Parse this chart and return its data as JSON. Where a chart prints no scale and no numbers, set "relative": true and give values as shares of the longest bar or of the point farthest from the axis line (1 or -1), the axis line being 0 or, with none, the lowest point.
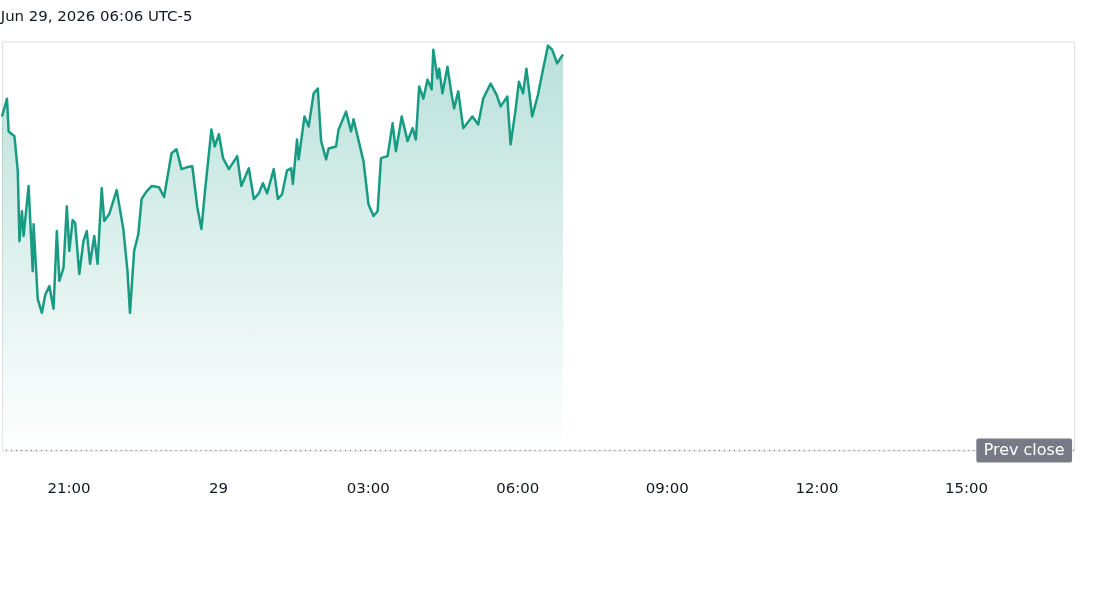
{
  "chart_data": {
    "type": "area",
    "title": "Jun 29, 2026 06:06 UTC-5",
    "relative": true,
    "marker": "none",
    "line_style": "solid",
    "grid": false,
    "xlim": [
      "2026-06-28T19:40",
      "2026-06-29T17:10"
    ],
    "xticks": [
      {
        "value": "2026-06-28T21:00",
        "label": "21:00"
      },
      {
        "value": "2026-06-29T00:00",
        "label": "29"
      },
      {
        "value": "2026-06-29T03:00",
        "label": "03:00"
      },
      {
        "value": "2026-06-29T06:00",
        "label": "06:00"
      },
      {
        "value": "2026-06-29T09:00",
        "label": "09:00"
      },
      {
        "value": "2026-06-29T12:00",
        "label": "12:00"
      },
      {
        "value": "2026-06-29T15:00",
        "label": "15:00"
      }
    ],
    "ref_lines": [
      {
        "axis": "y",
        "value": 0,
        "label": "Prev close",
        "color": "#787b86",
        "line_style": "dotted"
      }
    ],
    "series": [
      {
        "color": "#179b83",
        "x": [
          "2026-06-28T19:40",
          "2026-06-28T19:46",
          "2026-06-28T19:48",
          "2026-06-28T19:55",
          "2026-06-28T19:59",
          "2026-06-28T20:01",
          "2026-06-28T20:04",
          "2026-06-28T20:06",
          "2026-06-28T20:12",
          "2026-06-28T20:17",
          "2026-06-28T20:18",
          "2026-06-28T20:23",
          "2026-06-28T20:28",
          "2026-06-28T20:32",
          "2026-06-28T20:37",
          "2026-06-28T20:42",
          "2026-06-28T20:46",
          "2026-06-28T20:49",
          "2026-06-28T20:54",
          "2026-06-28T20:58",
          "2026-06-28T21:01",
          "2026-06-28T21:05",
          "2026-06-28T21:08",
          "2026-06-28T21:13",
          "2026-06-28T21:18",
          "2026-06-28T21:22",
          "2026-06-28T21:26",
          "2026-06-28T21:31",
          "2026-06-28T21:35",
          "2026-06-28T21:40",
          "2026-06-28T21:43",
          "2026-06-28T21:49",
          "2026-06-28T21:58",
          "2026-06-28T22:06",
          "2026-06-28T22:11",
          "2026-06-28T22:14",
          "2026-06-28T22:19",
          "2026-06-28T22:24",
          "2026-06-28T22:28",
          "2026-06-28T22:34",
          "2026-06-28T22:40",
          "2026-06-28T22:49",
          "2026-06-28T22:55",
          "2026-06-28T23:04",
          "2026-06-28T23:10",
          "2026-06-28T23:16",
          "2026-06-28T23:23",
          "2026-06-28T23:29",
          "2026-06-28T23:35",
          "2026-06-28T23:40",
          "2026-06-28T23:44",
          "2026-06-28T23:52",
          "2026-06-28T23:56",
          "2026-06-29T00:01",
          "2026-06-29T00:06",
          "2026-06-29T00:13",
          "2026-06-29T00:23",
          "2026-06-29T00:28",
          "2026-06-29T00:37",
          "2026-06-29T00:43",
          "2026-06-29T00:49",
          "2026-06-29T00:54",
          "2026-06-29T00:59",
          "2026-06-29T01:07",
          "2026-06-29T01:12",
          "2026-06-29T01:17",
          "2026-06-29T01:23",
          "2026-06-29T01:28",
          "2026-06-29T01:30",
          "2026-06-29T01:35",
          "2026-06-29T01:37",
          "2026-06-29T01:44",
          "2026-06-29T01:49",
          "2026-06-29T01:55",
          "2026-06-29T02:00",
          "2026-06-29T02:04",
          "2026-06-29T02:10",
          "2026-06-29T02:13",
          "2026-06-29T02:22",
          "2026-06-29T02:25",
          "2026-06-29T02:34",
          "2026-06-29T02:40",
          "2026-06-29T02:43",
          "2026-06-29T02:55",
          "2026-06-29T03:01",
          "2026-06-29T03:07",
          "2026-06-29T03:12",
          "2026-06-29T03:16",
          "2026-06-29T03:24",
          "2026-06-29T03:30",
          "2026-06-29T03:34",
          "2026-06-29T03:41",
          "2026-06-29T03:48",
          "2026-06-29T03:54",
          "2026-06-29T03:58",
          "2026-06-29T04:02",
          "2026-06-29T04:07",
          "2026-06-29T04:12",
          "2026-06-29T04:17",
          "2026-06-29T04:19",
          "2026-06-29T04:24",
          "2026-06-29T04:26",
          "2026-06-29T04:30",
          "2026-06-29T04:36",
          "2026-06-29T04:41",
          "2026-06-29T04:44",
          "2026-06-29T04:49",
          "2026-06-29T04:55",
          "2026-06-29T05:06",
          "2026-06-29T05:13",
          "2026-06-29T05:19",
          "2026-06-29T05:28",
          "2026-06-29T05:35",
          "2026-06-29T05:40",
          "2026-06-29T05:48",
          "2026-06-29T05:52",
          "2026-06-29T05:58",
          "2026-06-29T06:02",
          "2026-06-29T06:07",
          "2026-06-29T06:11",
          "2026-06-29T06:18",
          "2026-06-29T06:25",
          "2026-06-29T06:31",
          "2026-06-29T06:37",
          "2026-06-29T06:42",
          "2026-06-29T06:48",
          "2026-06-29T06:55"
        ],
        "values": [
          0.825,
          0.869,
          0.788,
          0.776,
          0.69,
          0.517,
          0.591,
          0.53,
          0.653,
          0.443,
          0.559,
          0.374,
          0.34,
          0.384,
          0.406,
          0.35,
          0.542,
          0.419,
          0.451,
          0.603,
          0.493,
          0.569,
          0.562,
          0.436,
          0.517,
          0.542,
          0.461,
          0.53,
          0.461,
          0.648,
          0.567,
          0.584,
          0.643,
          0.547,
          0.443,
          0.34,
          0.493,
          0.534,
          0.621,
          0.64,
          0.653,
          0.65,
          0.626,
          0.734,
          0.744,
          0.695,
          0.7,
          0.702,
          0.601,
          0.547,
          0.635,
          0.793,
          0.751,
          0.781,
          0.722,
          0.695,
          0.727,
          0.653,
          0.697,
          0.621,
          0.635,
          0.66,
          0.635,
          0.695,
          0.621,
          0.633,
          0.692,
          0.697,
          0.658,
          0.768,
          0.719,
          0.825,
          0.8,
          0.882,
          0.894,
          0.764,
          0.719,
          0.746,
          0.751,
          0.793,
          0.837,
          0.788,
          0.818,
          0.714,
          0.608,
          0.579,
          0.591,
          0.722,
          0.727,
          0.808,
          0.739,
          0.825,
          0.764,
          0.796,
          0.768,
          0.899,
          0.869,
          0.916,
          0.892,
          0.99,
          0.919,
          0.943,
          0.882,
          0.948,
          0.879,
          0.845,
          0.887,
          0.796,
          0.825,
          0.805,
          0.869,
          0.906,
          0.879,
          0.85,
          0.874,
          0.756,
          0.842,
          0.911,
          0.882,
          0.943,
          0.825,
          0.879,
          0.941,
          1.0,
          0.99,
          0.956,
          0.978
        ]
      }
    ]
  }
}
